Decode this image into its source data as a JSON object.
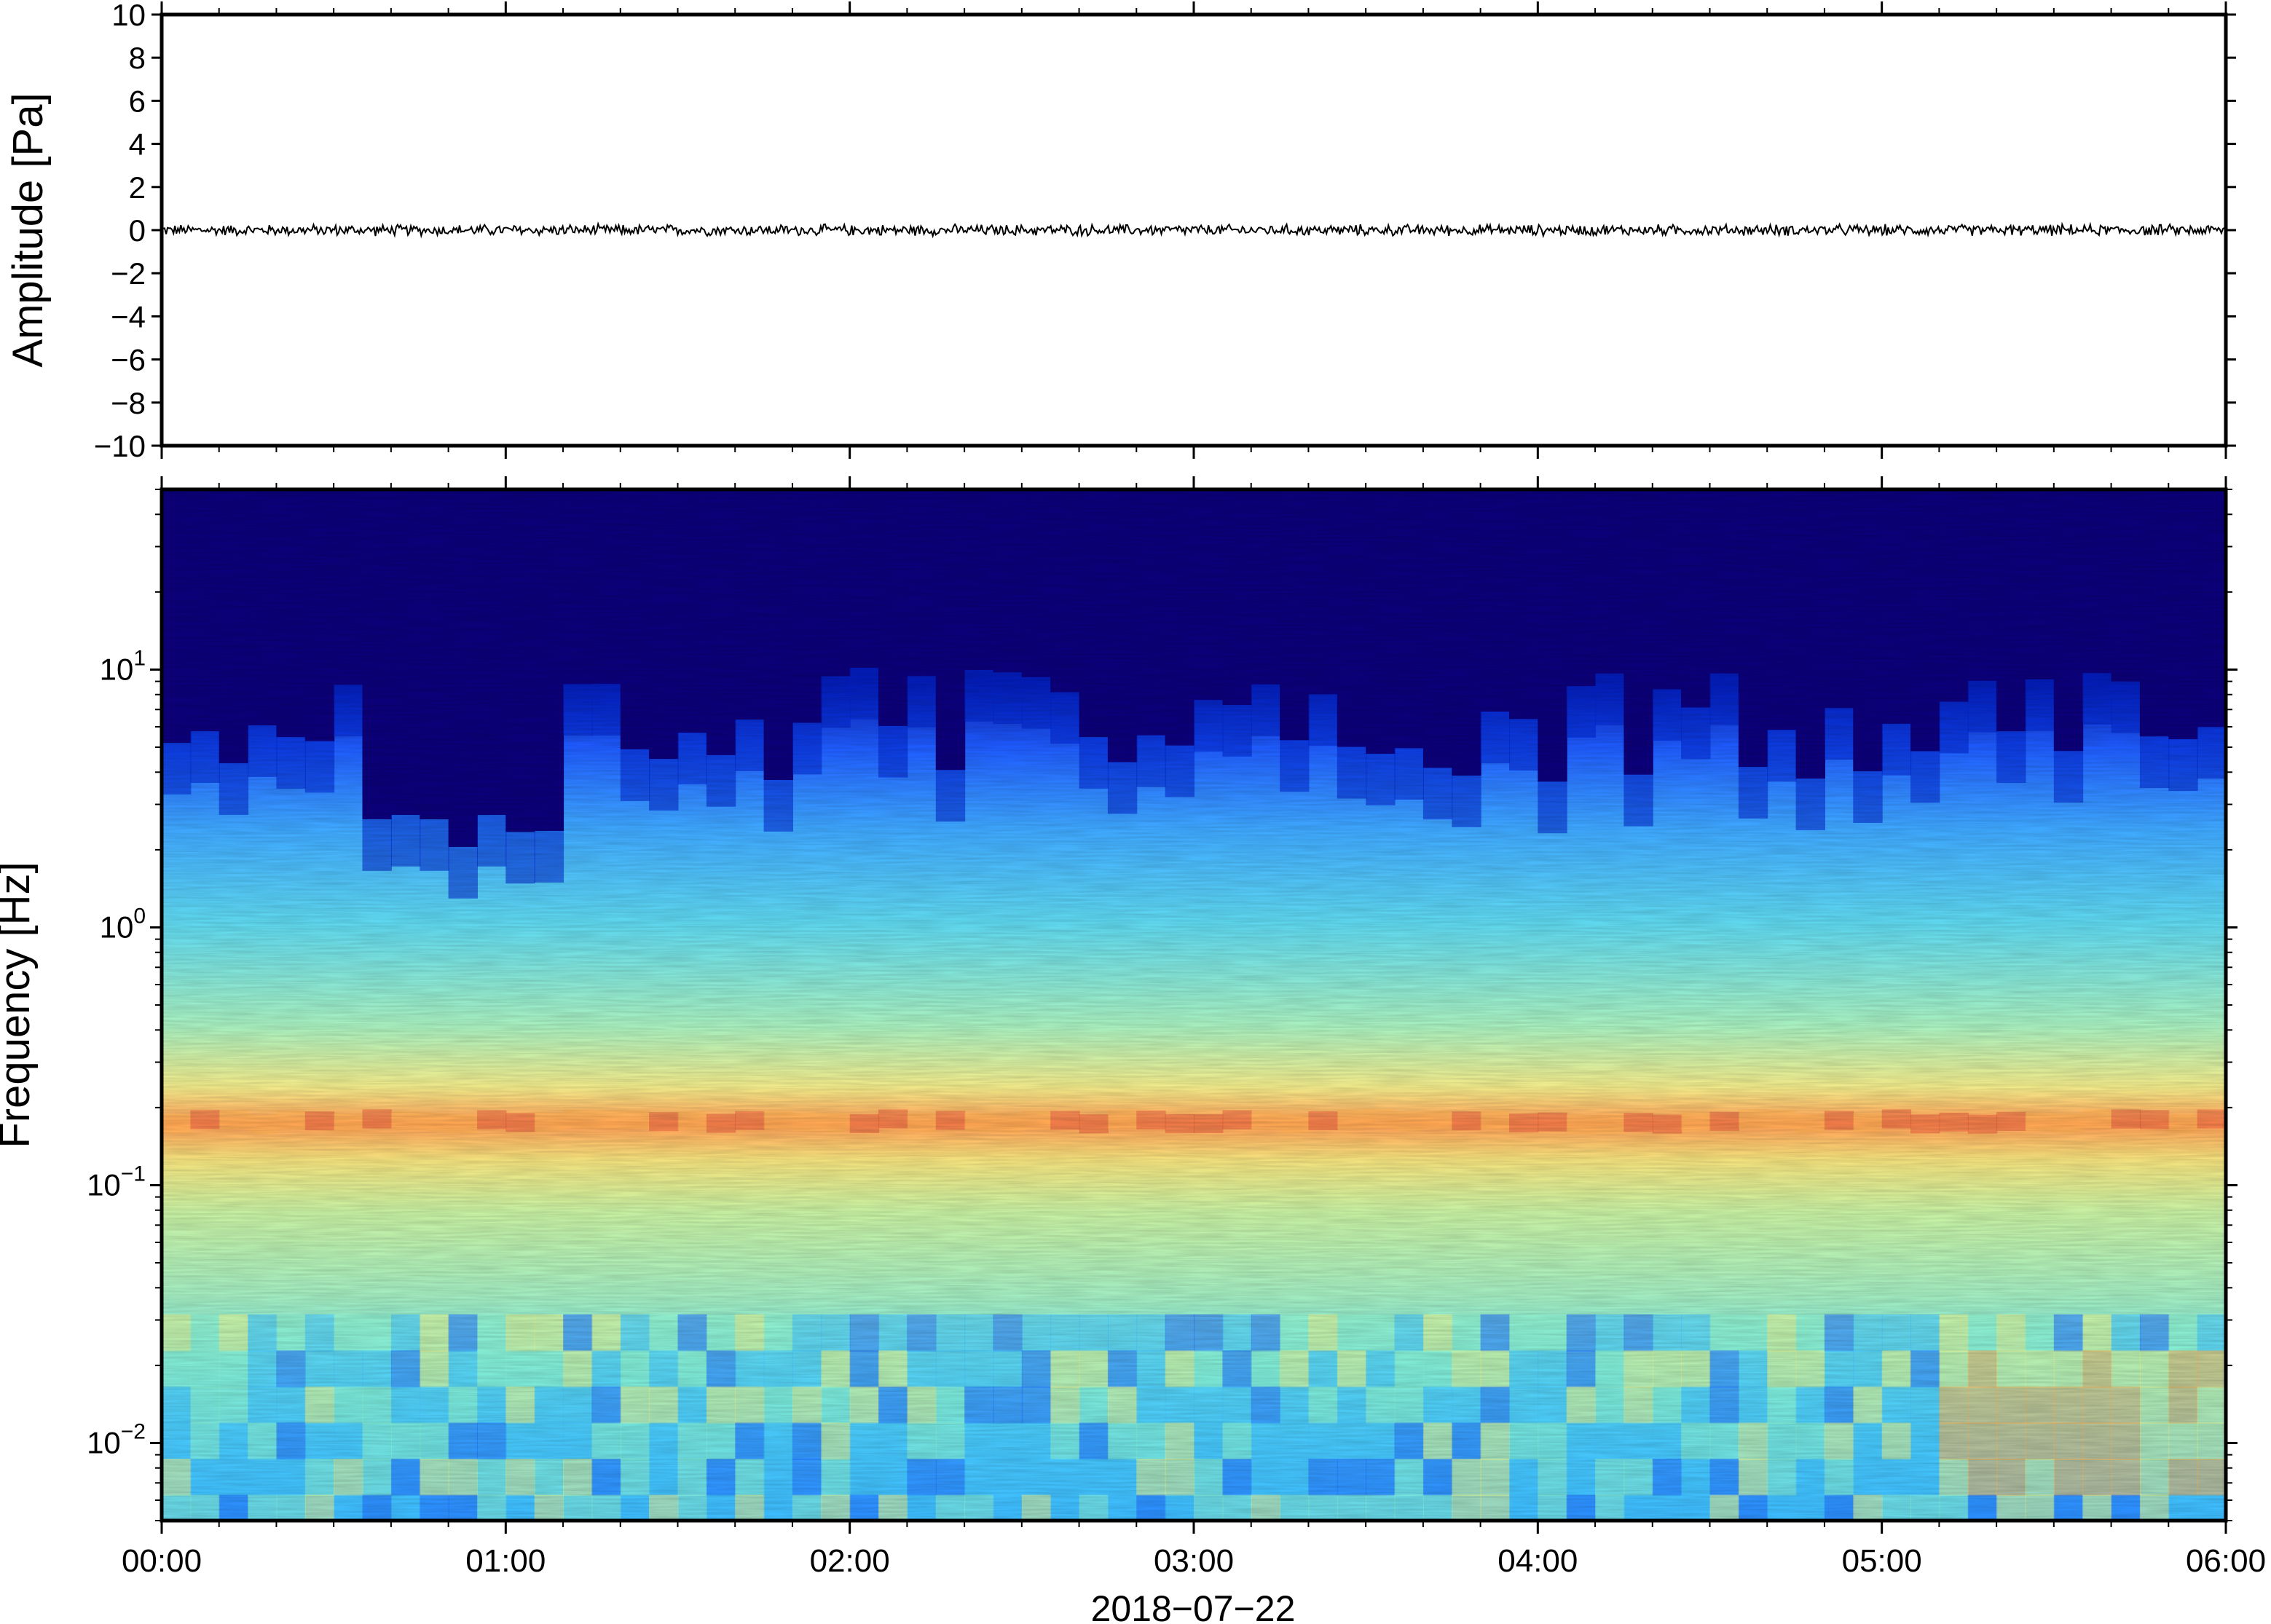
{
  "chart_data": [
    {
      "type": "line",
      "ylabel": "Amplitude [Pa]",
      "ylim": [
        -10,
        10
      ],
      "ytick_labels": [
        "10",
        "8",
        "6",
        "4",
        "2",
        "0",
        "−2",
        "−4",
        "−6",
        "−8",
        "−10"
      ],
      "series": [
        {
          "values_description_range": [
            -0.3,
            0.3
          ]
        }
      ],
      "grid": false
    },
    {
      "type": "heatmap",
      "ylabel": "Frequency [Hz]",
      "yscale": "log",
      "ylim": [
        0.005,
        50
      ],
      "ytick_labels": [
        {
          "base": "10",
          "exp": "1"
        },
        {
          "base": "10",
          "exp": "0"
        },
        {
          "base": "10",
          "exp": "−1"
        },
        {
          "base": "10",
          "exp": "−2"
        }
      ],
      "xlim": [
        "00:00",
        "06:00"
      ],
      "xtick_labels": [
        "00:00",
        "01:00",
        "02:00",
        "03:00",
        "04:00",
        "05:00",
        "06:00"
      ],
      "xlabel": "2018−07−22",
      "colormap": [
        "#0c007a",
        "#0022c8",
        "#1f6fff",
        "#3fc3ff",
        "#8af0d0",
        "#e8f08a",
        "#ffb050",
        "#e0503a"
      ],
      "dominant_band_hz": 0.18,
      "grid": false
    }
  ]
}
